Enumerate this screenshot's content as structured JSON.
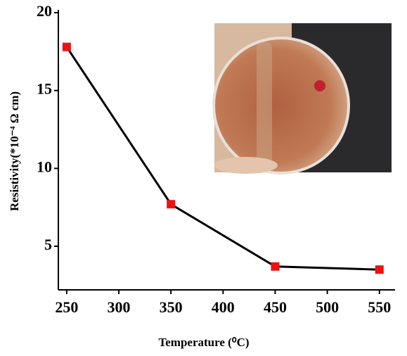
{
  "chart_data": {
    "type": "line",
    "xlabel": "Temperature (⁰C)",
    "ylabel": "Resistivity(*10⁻⁴ Ω cm)",
    "x": [
      250,
      350,
      450,
      550
    ],
    "series": [
      {
        "values": [
          17.8,
          7.7,
          3.7,
          3.5
        ],
        "color": "#000000",
        "marker_color": "#ee1111"
      }
    ],
    "xlim": [
      242,
      565
    ],
    "xticks": [
      250,
      300,
      350,
      400,
      450,
      500,
      550
    ],
    "ylim": [
      2.2,
      20
    ],
    "yticks": [
      5,
      10,
      15,
      20
    ]
  }
}
